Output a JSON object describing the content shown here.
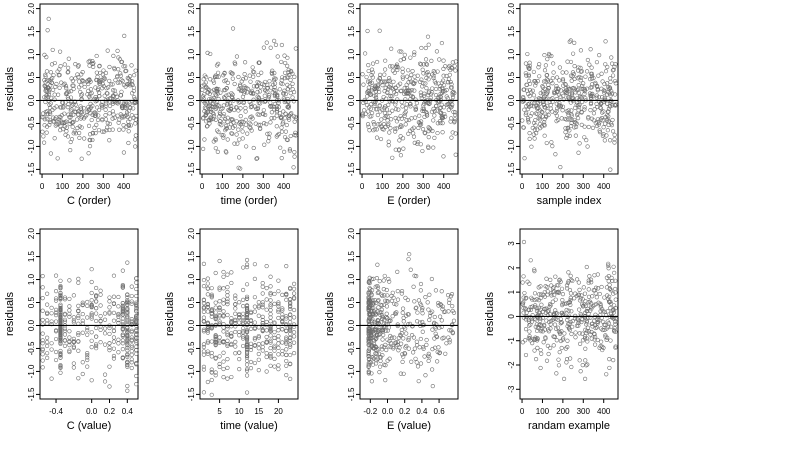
{
  "chart_data": [
    {
      "type": "scatter",
      "xlabel": "C (order)",
      "ylabel": "residuals",
      "xlim": [
        -10,
        470
      ],
      "ylim": [
        -1.6,
        2.1
      ],
      "xticks": [
        0,
        100,
        200,
        300,
        400
      ],
      "xtick_labels": [
        "0",
        "100",
        "200",
        "300",
        "400"
      ],
      "yticks": [
        -1.5,
        -1.0,
        -0.5,
        0.0,
        0.5,
        1.0,
        1.5,
        2.0
      ],
      "ytick_labels": [
        "-1.5",
        "-1.0",
        "-0.5",
        "0.0",
        "0.5",
        "1.0",
        "1.5",
        "2.0"
      ],
      "hline": 0,
      "n_points": 460,
      "x_range": [
        1,
        460
      ],
      "x_spread": "uniform",
      "y_sd": 0.5,
      "seed": 11
    },
    {
      "type": "scatter",
      "xlabel": "time (order)",
      "ylabel": "residuals",
      "xlim": [
        -10,
        470
      ],
      "ylim": [
        -1.6,
        2.1
      ],
      "xticks": [
        0,
        100,
        200,
        300,
        400
      ],
      "xtick_labels": [
        "0",
        "100",
        "200",
        "300",
        "400"
      ],
      "yticks": [
        -1.5,
        -1.0,
        -0.5,
        0.0,
        0.5,
        1.0,
        1.5,
        2.0
      ],
      "ytick_labels": [
        "-1.5",
        "-1.0",
        "-0.5",
        "0.0",
        "0.5",
        "1.0",
        "1.5",
        "2.0"
      ],
      "hline": 0,
      "n_points": 460,
      "x_range": [
        1,
        460
      ],
      "x_spread": "uniform",
      "y_sd": 0.5,
      "seed": 23
    },
    {
      "type": "scatter",
      "xlabel": "E (order)",
      "ylabel": "residuals",
      "xlim": [
        -10,
        470
      ],
      "ylim": [
        -1.6,
        2.1
      ],
      "xticks": [
        0,
        100,
        200,
        300,
        400
      ],
      "xtick_labels": [
        "0",
        "100",
        "200",
        "300",
        "400"
      ],
      "yticks": [
        -1.5,
        -1.0,
        -0.5,
        0.0,
        0.5,
        1.0,
        1.5,
        2.0
      ],
      "ytick_labels": [
        "-1.5",
        "-1.0",
        "-0.5",
        "0.0",
        "0.5",
        "1.0",
        "1.5",
        "2.0"
      ],
      "hline": 0,
      "n_points": 460,
      "x_range": [
        1,
        460
      ],
      "x_spread": "uniform",
      "y_sd": 0.5,
      "seed": 37
    },
    {
      "type": "scatter",
      "xlabel": "sample index",
      "ylabel": "residuals",
      "xlim": [
        -10,
        470
      ],
      "ylim": [
        -1.6,
        2.1
      ],
      "xticks": [
        0,
        100,
        200,
        300,
        400
      ],
      "xtick_labels": [
        "0",
        "100",
        "200",
        "300",
        "400"
      ],
      "yticks": [
        -1.5,
        -1.0,
        -0.5,
        0.0,
        0.5,
        1.0,
        1.5,
        2.0
      ],
      "ytick_labels": [
        "-1.5",
        "-1.0",
        "-0.5",
        "0.0",
        "0.5",
        "1.0",
        "1.5",
        "2.0"
      ],
      "hline": 0,
      "n_points": 460,
      "x_range": [
        1,
        460
      ],
      "x_spread": "uniform",
      "y_sd": 0.5,
      "seed": 41
    },
    {
      "type": "scatter",
      "xlabel": "C (value)",
      "ylabel": "residuals",
      "xlim": [
        -0.58,
        0.52
      ],
      "ylim": [
        -1.6,
        2.1
      ],
      "xticks": [
        -0.4,
        0.0,
        0.2,
        0.4
      ],
      "xtick_labels": [
        "-0.4",
        "0.0",
        "0.2",
        "0.4"
      ],
      "yticks": [
        -1.5,
        -1.0,
        -0.5,
        0.0,
        0.5,
        1.0,
        1.5,
        2.0
      ],
      "ytick_labels": [
        "-1.5",
        "-1.0",
        "-0.5",
        "0.0",
        "0.5",
        "1.0",
        "1.5",
        "2.0"
      ],
      "hline": 0,
      "n_points": 460,
      "x_levels": [
        -0.55,
        -0.5,
        -0.45,
        -0.4,
        -0.35,
        -0.3,
        -0.25,
        -0.2,
        -0.15,
        -0.1,
        -0.05,
        0.0,
        0.05,
        0.1,
        0.15,
        0.2,
        0.25,
        0.3,
        0.35,
        0.4,
        0.45,
        0.5
      ],
      "x_level_weights": [
        1,
        1,
        1,
        1,
        8,
        1,
        1,
        1,
        1,
        1,
        1,
        1,
        1,
        1,
        1,
        1,
        1,
        1,
        2,
        4,
        2,
        3
      ],
      "y_sd": 0.5,
      "seed": 53
    },
    {
      "type": "scatter",
      "xlabel": "time (value)",
      "ylabel": "residuals",
      "xlim": [
        0,
        25
      ],
      "ylim": [
        -1.6,
        2.1
      ],
      "xticks": [
        5,
        10,
        15,
        20
      ],
      "xtick_labels": [
        "5",
        "10",
        "15",
        "20"
      ],
      "yticks": [
        -1.5,
        -1.0,
        -0.5,
        0.0,
        0.5,
        1.0,
        1.5,
        2.0
      ],
      "ytick_labels": [
        "-1.5",
        "-1.0",
        "-0.5",
        "0.0",
        "0.5",
        "1.0",
        "1.5",
        "2.0"
      ],
      "hline": 0,
      "n_points": 460,
      "x_levels": [
        1,
        2,
        3,
        4,
        5,
        6,
        7,
        8,
        9,
        10,
        11,
        12,
        13,
        14,
        15,
        16,
        17,
        18,
        19,
        20,
        21,
        22,
        23,
        24
      ],
      "x_level_weights": [
        1,
        1,
        1,
        1,
        1,
        1,
        1,
        1,
        1,
        1,
        1,
        4,
        1,
        1,
        1,
        1,
        1,
        1,
        1,
        1,
        1,
        1,
        1,
        1
      ],
      "y_sd": 0.5,
      "seed": 67
    },
    {
      "type": "scatter",
      "xlabel": "E (value)",
      "ylabel": "residuals",
      "xlim": [
        -0.32,
        0.82
      ],
      "ylim": [
        -1.6,
        2.1
      ],
      "xticks": [
        -0.2,
        0.0,
        0.2,
        0.4,
        0.6
      ],
      "xtick_labels": [
        "-0.2",
        "0.0",
        "0.2",
        "0.4",
        "0.6"
      ],
      "yticks": [
        -1.5,
        -1.0,
        -0.5,
        0.0,
        0.5,
        1.0,
        1.5,
        2.0
      ],
      "ytick_labels": [
        "-1.5",
        "-1.0",
        "-0.5",
        "0.0",
        "0.5",
        "1.0",
        "1.5",
        "2.0"
      ],
      "hline": 0,
      "n_points": 460,
      "x_dist": "skewed",
      "x_min": -0.22,
      "x_max": 0.78,
      "y_sd": 0.5,
      "seed": 79
    },
    {
      "type": "scatter",
      "xlabel": "randam example",
      "ylabel": "residuals",
      "xlim": [
        -10,
        470
      ],
      "ylim": [
        -3.4,
        3.6
      ],
      "xticks": [
        0,
        100,
        200,
        300,
        400
      ],
      "xtick_labels": [
        "0",
        "100",
        "200",
        "300",
        "400"
      ],
      "yticks": [
        -3,
        -2,
        -1,
        0,
        1,
        2,
        3
      ],
      "ytick_labels": [
        "-3",
        "-2",
        "-1",
        "0",
        "1",
        "2",
        "3"
      ],
      "hline": 0,
      "n_points": 460,
      "x_range": [
        1,
        460
      ],
      "x_spread": "uniform",
      "y_sd": 1.0,
      "seed": 97
    }
  ]
}
